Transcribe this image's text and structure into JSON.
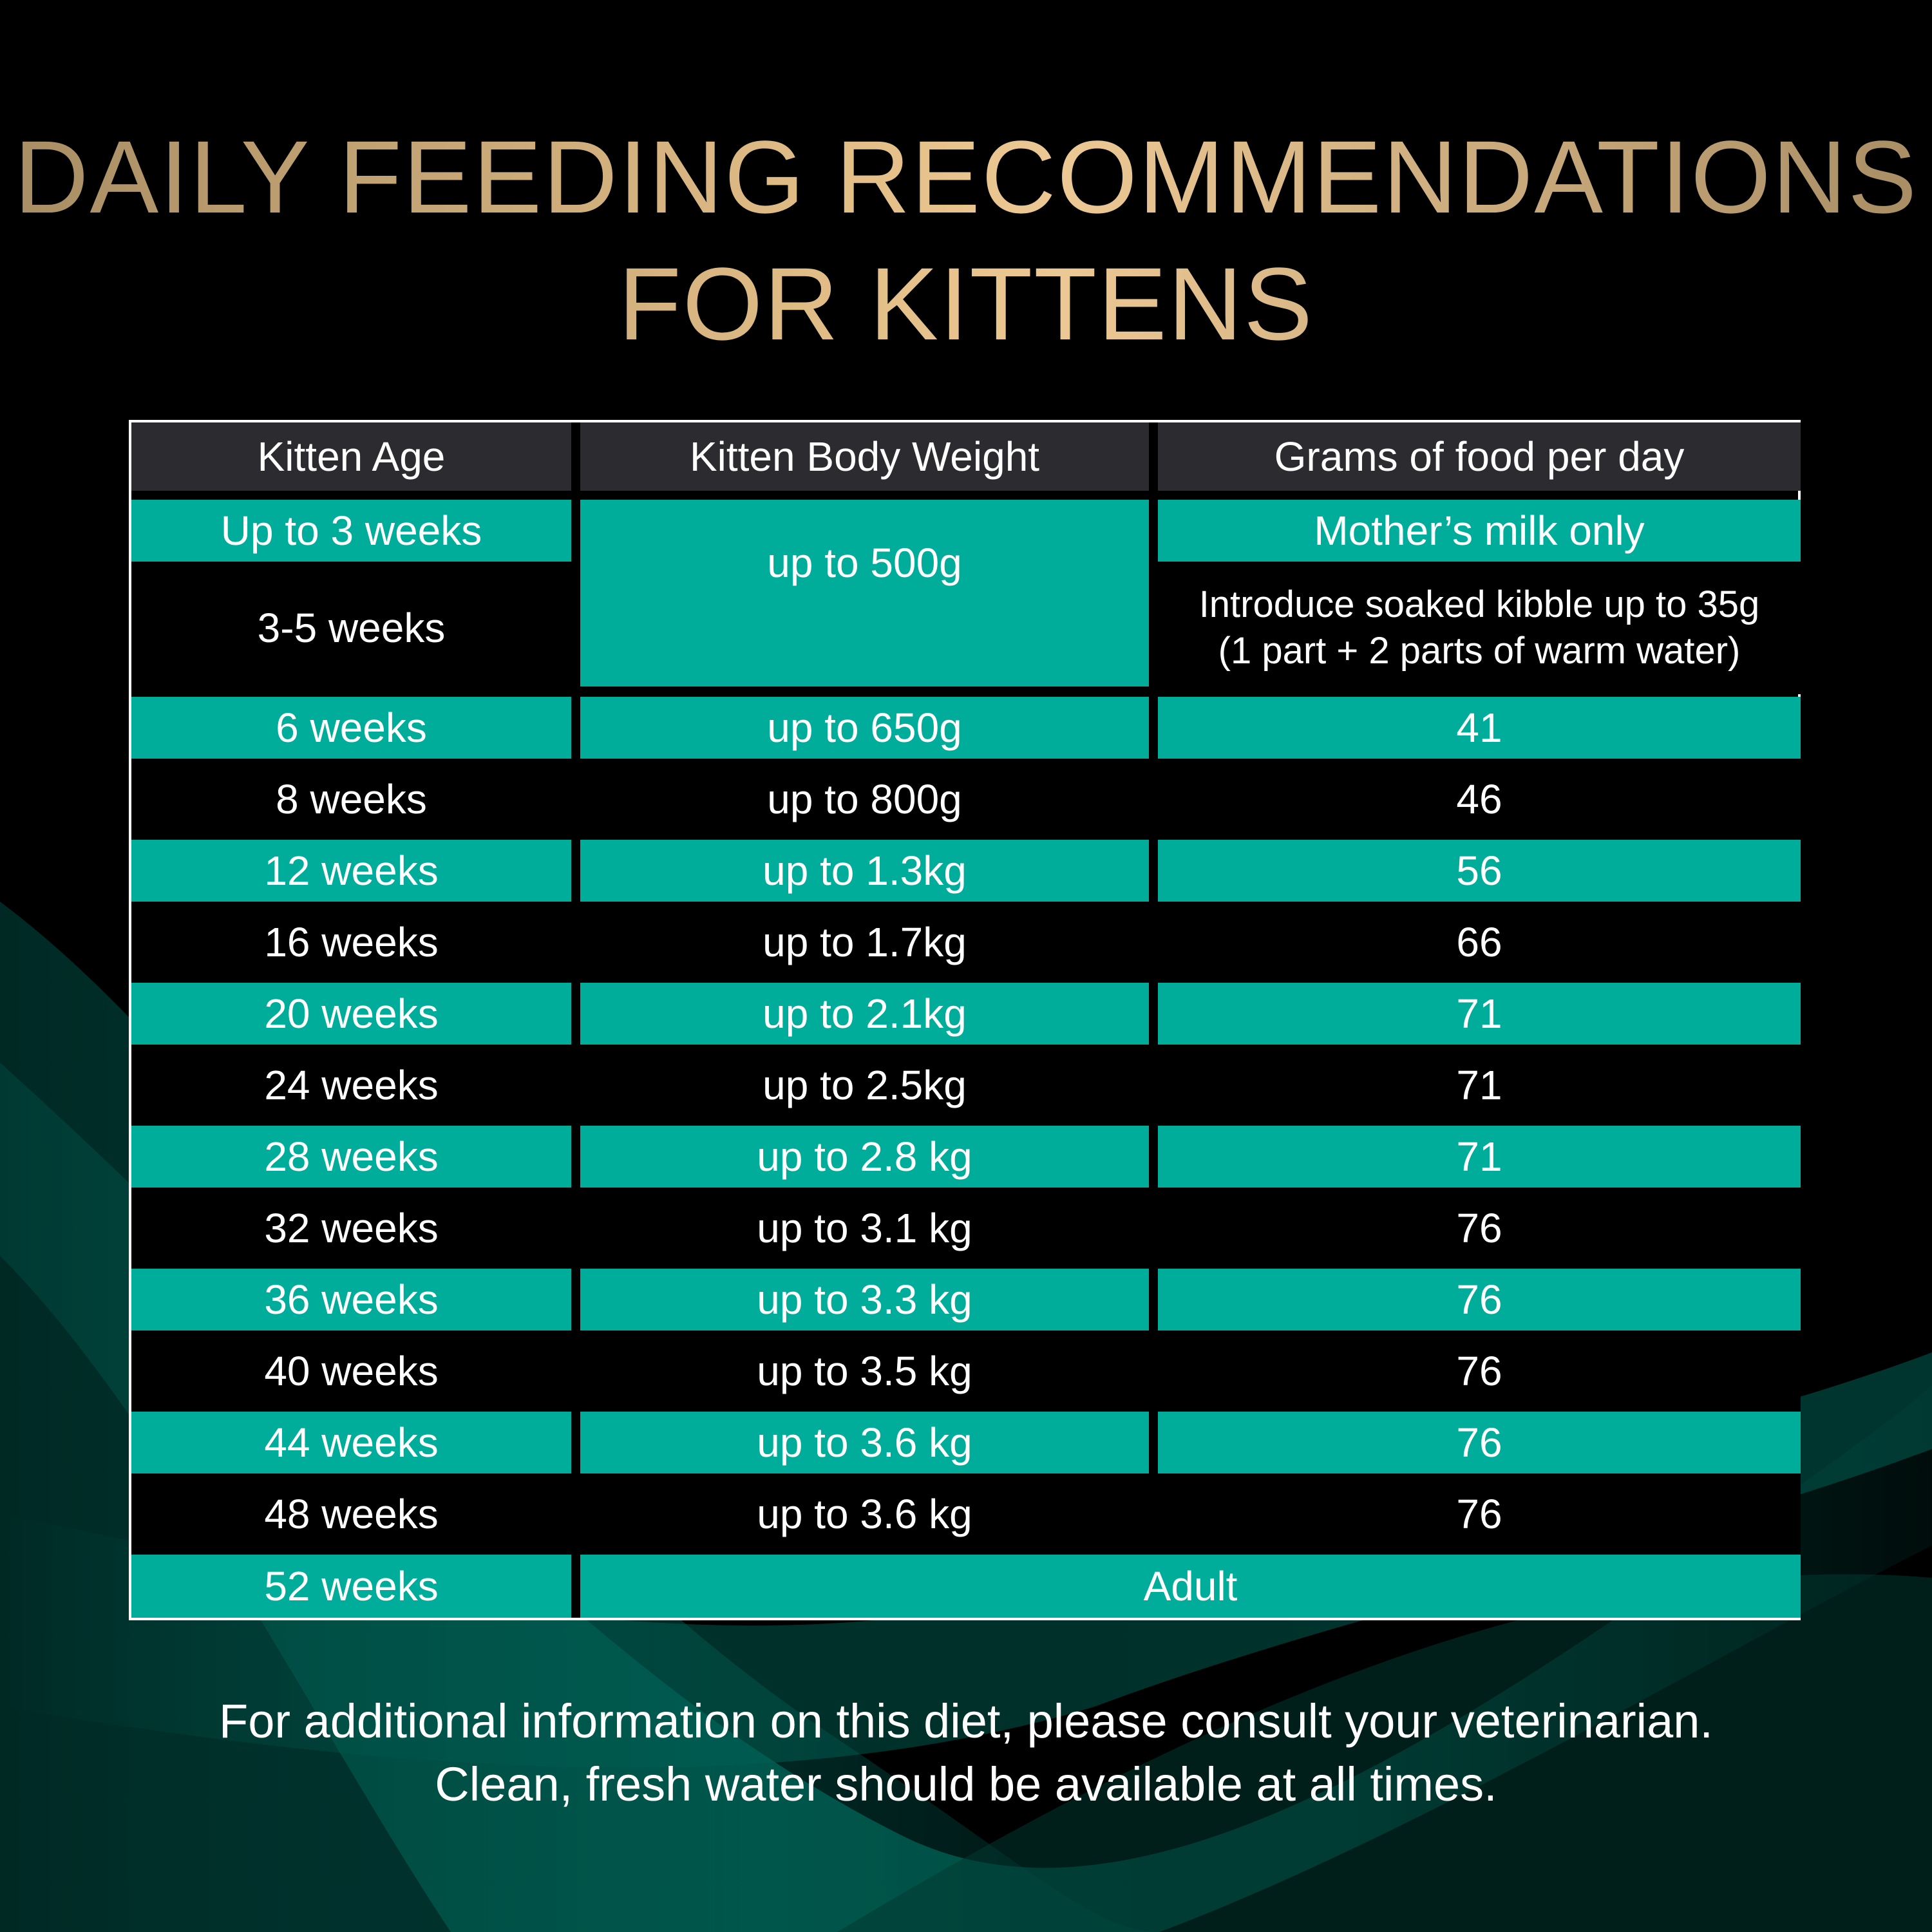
{
  "title": {
    "line1": "DAILY FEEDING RECOMMENDATIONS",
    "line2": "FOR KITTENS"
  },
  "colors": {
    "background": "#000000",
    "title_gold": "#d8b07a",
    "row_teal": "#00ac9a",
    "header_gray": "#2c2b30",
    "text": "#ffffff"
  },
  "table": {
    "headers": [
      "Kitten Age",
      "Kitten Body Weight",
      "Grams of food per day"
    ],
    "rows": [
      {
        "age": "Up to 3 weeks",
        "weight": "up to 500g",
        "grams": "Mother’s milk only"
      },
      {
        "age": "3-5 weeks",
        "weight": "up to 500g",
        "grams": [
          "Introduce soaked kibble up to 35g",
          "(1 part + 2 parts of warm water)"
        ]
      },
      {
        "age": "6 weeks",
        "weight": "up to 650g",
        "grams": "41"
      },
      {
        "age": "8 weeks",
        "weight": "up to 800g",
        "grams": "46"
      },
      {
        "age": "12 weeks",
        "weight": "up to 1.3kg",
        "grams": "56"
      },
      {
        "age": "16 weeks",
        "weight": "up to 1.7kg",
        "grams": "66"
      },
      {
        "age": "20 weeks",
        "weight": "up to 2.1kg",
        "grams": "71"
      },
      {
        "age": "24 weeks",
        "weight": "up to 2.5kg",
        "grams": "71"
      },
      {
        "age": "28 weeks",
        "weight": "up to 2.8 kg",
        "grams": "71"
      },
      {
        "age": "32 weeks",
        "weight": "up to 3.1 kg",
        "grams": "76"
      },
      {
        "age": "36 weeks",
        "weight": "up to 3.3 kg",
        "grams": "76"
      },
      {
        "age": "40 weeks",
        "weight": "up to 3.5 kg",
        "grams": "76"
      },
      {
        "age": "44 weeks",
        "weight": "up to 3.6 kg",
        "grams": "76"
      },
      {
        "age": "48 weeks",
        "weight": "up to 3.6 kg",
        "grams": "76"
      },
      {
        "age": "52 weeks",
        "weight_and_grams": "Adult"
      }
    ]
  },
  "footer": {
    "line1": "For additional information on this diet, please consult your veterinarian.",
    "line2": "Clean, fresh water should be available at all times."
  }
}
